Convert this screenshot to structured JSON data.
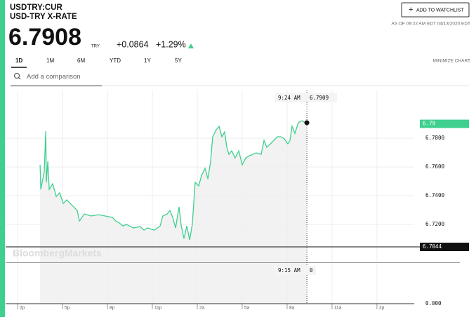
{
  "header": {
    "symbol": "USDTRY:CUR",
    "name": "USD-TRY X-RATE",
    "price": "6.7908",
    "currency": "TRY",
    "change": "+0.0864",
    "change_pct": "+1.29%",
    "watchlist_button": "ADD TO WATCHLIST",
    "as_of": "AS OF 09:22 AM EDT 04/13/2020 EDT"
  },
  "tabs": [
    "1D",
    "1M",
    "6M",
    "YTD",
    "1Y",
    "5Y"
  ],
  "minimize": "MINIMIZE CHART",
  "comparison_placeholder": "Add a comparison",
  "watermark": "BloombergMarkets",
  "chart_data": {
    "type": "line",
    "color": "#3fcf8e",
    "x": [
      1.5,
      1.55,
      1.78,
      1.88,
      1.92,
      2.02,
      2.11,
      2.34,
      2.58,
      2.81,
      3.05,
      3.28,
      3.52,
      3.75,
      3.98,
      4.13,
      4.45,
      4.92,
      5.39,
      5.86,
      6.33,
      6.56,
      6.8,
      7.03,
      7.27,
      7.74,
      8.2,
      8.44,
      8.67,
      9.14,
      9.52,
      9.7,
      9.99,
      10.17,
      10.36,
      10.55,
      10.78,
      10.92,
      11.11,
      11.3,
      11.49,
      11.67,
      11.86,
      12.1,
      12.28,
      12.52,
      12.71,
      12.89,
      13.03,
      13.27,
      13.46,
      13.64,
      13.83,
      13.97,
      14.11,
      14.3,
      14.53,
      14.77,
      15.0,
      15.24,
      15.47,
      15.94,
      16.27,
      16.46,
      16.64,
      16.88,
      17.11,
      17.35,
      17.58,
      17.82,
      18.05,
      18.19,
      18.33,
      18.52,
      18.75,
      18.99,
      19.22,
      19.32
    ],
    "values": [
      6.7615,
      6.7444,
      6.7566,
      6.7849,
      6.7493,
      6.7639,
      6.7444,
      6.7483,
      6.7395,
      6.742,
      6.7346,
      6.7371,
      6.7346,
      6.7322,
      6.7298,
      6.7224,
      6.7273,
      6.7259,
      6.7268,
      6.7259,
      6.7249,
      6.7224,
      6.721,
      6.719,
      6.72,
      6.7176,
      6.7185,
      6.7161,
      6.7176,
      6.7161,
      6.719,
      6.7259,
      6.7273,
      6.7298,
      6.7249,
      6.7176,
      6.7322,
      6.72,
      6.7102,
      6.719,
      6.7093,
      6.72,
      6.7493,
      6.7468,
      6.7541,
      6.759,
      6.7517,
      6.7639,
      6.781,
      6.7859,
      6.7883,
      6.781,
      6.7844,
      6.7737,
      6.7688,
      6.7712,
      6.7663,
      6.7712,
      6.7615,
      6.7663,
      6.7678,
      6.7698,
      6.7688,
      6.7785,
      6.7737,
      6.7761,
      6.7785,
      6.781,
      6.781,
      6.7795,
      6.7761,
      6.7785,
      6.7883,
      6.7834,
      6.7907,
      6.7922,
      6.7907,
      6.7908
    ],
    "xlim": [
      -0.8,
      26.49
    ],
    "xticks": [
      {
        "value": 0,
        "label": "2p"
      },
      {
        "value": 3,
        "label": "5p"
      },
      {
        "value": 6,
        "label": "8p"
      },
      {
        "value": 9,
        "label": "11p"
      },
      {
        "value": 12,
        "label": "2a"
      },
      {
        "value": 15,
        "label": "5a"
      },
      {
        "value": 18,
        "label": "8a"
      },
      {
        "value": 21,
        "label": "11a"
      },
      {
        "value": 24,
        "label": "2p"
      }
    ],
    "ylim": [
      6.6649,
      6.8137
    ],
    "yticks": [
      {
        "value": 6.72,
        "label": "6.7200"
      },
      {
        "value": 6.74,
        "label": "6.7400"
      },
      {
        "value": 6.76,
        "label": "6.7600"
      },
      {
        "value": 6.78,
        "label": "6.7800"
      }
    ],
    "y_floor_label": "0.000",
    "last_price": 6.79,
    "previous_close": 6.7044,
    "crosshair_top": {
      "time": "9:24 AM",
      "value": 6.7909
    },
    "crosshair_bottom": {
      "time": "9:15 AM",
      "value": 0
    }
  }
}
